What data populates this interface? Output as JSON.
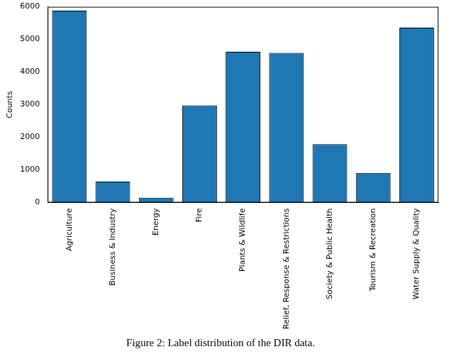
{
  "chart_data": {
    "type": "bar",
    "title": "Figure 2: Label distribution of the DIR data.",
    "y_label": "Counts",
    "categories": [
      "Agriculture",
      "Business & Industry",
      "Energy",
      "Fire",
      "Plants & Wildlife",
      "Relief, Response & Restrictions",
      "Society & Public Health",
      "Tourism & Recreation",
      "Water Supply & Quality"
    ],
    "values": [
      5880,
      640,
      150,
      2980,
      4620,
      4590,
      1790,
      910,
      5360
    ],
    "color": "#1f77b4",
    "ylim": [
      0,
      6000
    ],
    "yticks": [
      0,
      1000,
      2000,
      3000,
      4000,
      5000,
      6000
    ],
    "grid": false
  }
}
